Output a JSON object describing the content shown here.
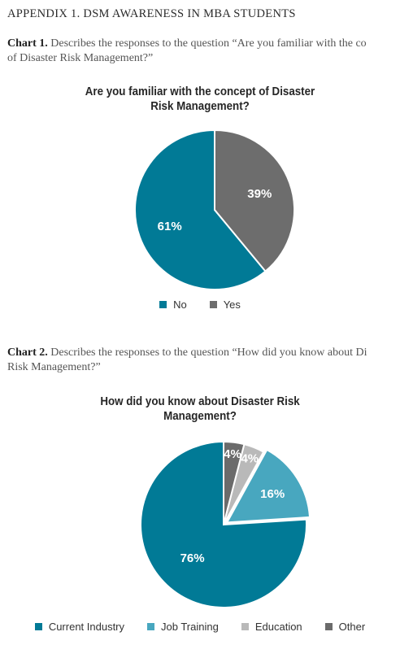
{
  "header": {
    "title": "APPENDIX 1. DSM AWARENESS IN MBA STUDENTS"
  },
  "captions": [
    {
      "label": "Chart 1.",
      "line1": "Describes the responses to the question “Are you familiar with the co",
      "line2": "of Disaster Risk Management?”"
    },
    {
      "label": "Chart 2.",
      "line1": "Describes the responses to the question “How did you know about Di",
      "line2": "Risk Management?”"
    }
  ],
  "chart_data": [
    {
      "type": "pie",
      "title": [
        "Are you familiar with the concept of Disaster",
        "Risk Management?"
      ],
      "categories": [
        "No",
        "Yes"
      ],
      "values": [
        61,
        39
      ],
      "labels": [
        "61%",
        "39%"
      ],
      "colors": [
        "#017a96",
        "#6d6d6d"
      ],
      "legend": "bottom"
    },
    {
      "type": "pie",
      "title": [
        "How did you know about Disaster Risk",
        "Management?"
      ],
      "categories": [
        "Current Industry",
        "Job Training",
        "Education",
        "Other"
      ],
      "values": [
        76,
        16,
        4,
        4
      ],
      "labels": [
        "76%",
        "16%",
        "4%",
        "4%"
      ],
      "colors": [
        "#017a96",
        "#48a7bf",
        "#b9b9b9",
        "#6b6b6b"
      ],
      "legend": "bottom"
    }
  ]
}
